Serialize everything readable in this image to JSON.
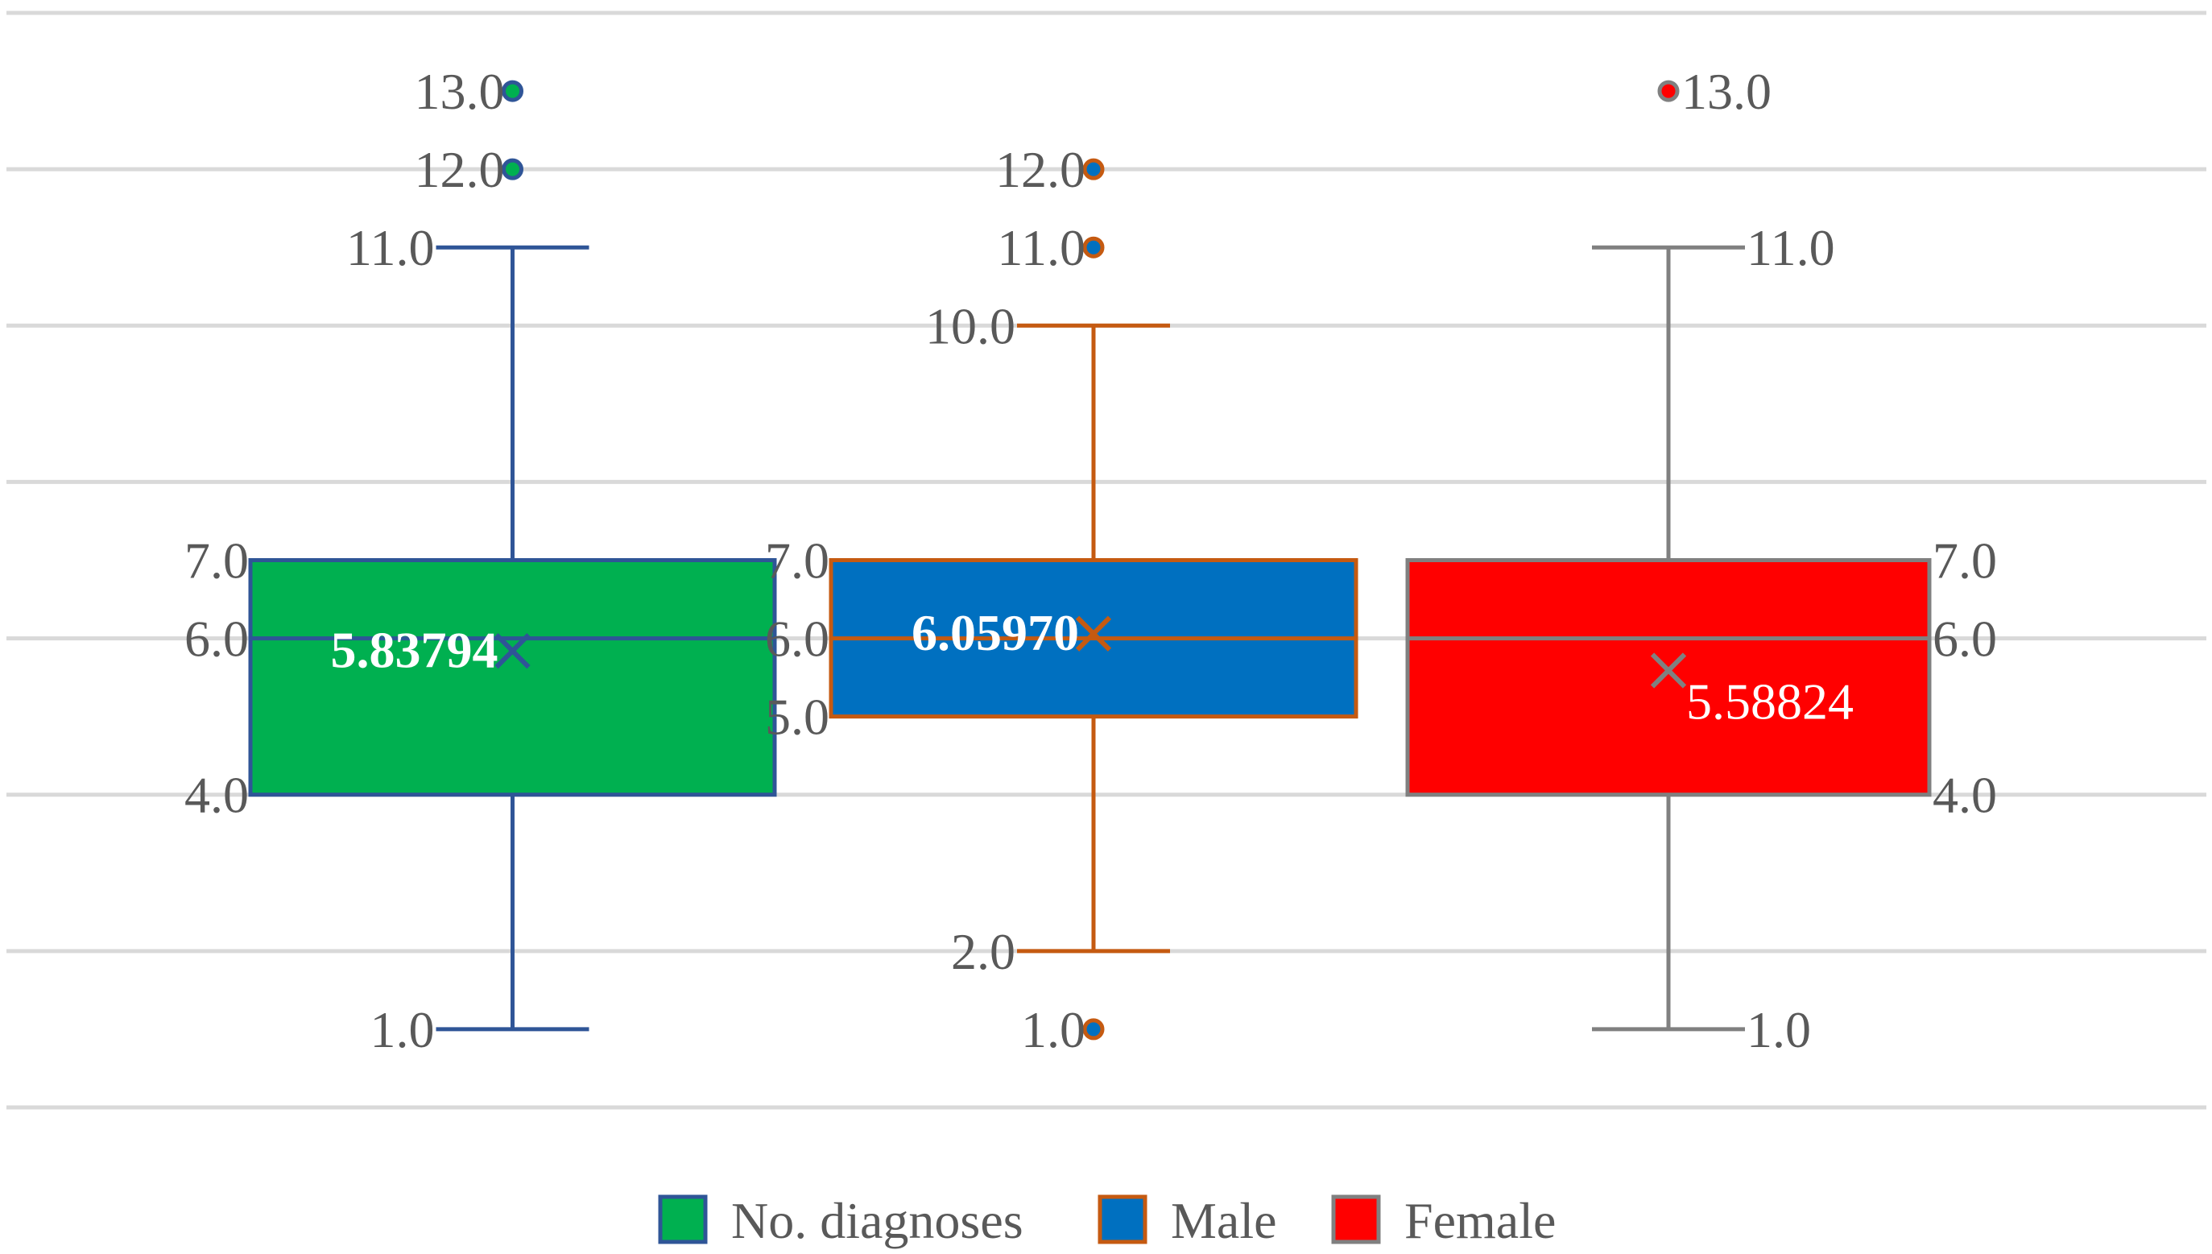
{
  "chart_data": {
    "type": "box",
    "title": "",
    "xlabel": "",
    "ylabel": "",
    "ylim": [
      0,
      14
    ],
    "grid": true,
    "legend_position": "bottom",
    "series": [
      {
        "name": "No. diagnoses",
        "fill": "#00B050",
        "stroke": "#2F5597",
        "min": 1.0,
        "q1": 4.0,
        "median": 6.0,
        "q3": 7.0,
        "max": 11.0,
        "mean": 5.83794,
        "outliers": [
          12.0,
          13.0
        ],
        "labels": {
          "min": "1.0",
          "q1": "4.0",
          "median": "6.0",
          "q3": "7.0",
          "max": "11.0",
          "mean": "5.83794",
          "outliers": [
            "12.0",
            "13.0"
          ]
        }
      },
      {
        "name": "Male",
        "fill": "#0070C0",
        "stroke": "#C55A11",
        "min": 2.0,
        "q1": 5.0,
        "median": 6.0,
        "q3": 7.0,
        "max": 10.0,
        "mean": 6.0597,
        "outliers": [
          1.0,
          11.0,
          12.0
        ],
        "labels": {
          "min": "2.0",
          "q1": "5.0",
          "median": "6.0",
          "q3": "7.0",
          "max": "10.0",
          "mean": "6.05970",
          "outliers": [
            "1.0",
            "11.0",
            "12.0"
          ]
        }
      },
      {
        "name": "Female",
        "fill": "#FF0000",
        "stroke": "#808080",
        "min": 1.0,
        "q1": 4.0,
        "median": 6.0,
        "q3": 7.0,
        "max": 11.0,
        "mean": 5.58824,
        "outliers": [
          13.0
        ],
        "labels": {
          "min": "1.0",
          "q1": "4.0",
          "median": "6.0",
          "q3": "7.0",
          "max": "11.0",
          "mean": "5.58824",
          "outliers": [
            "13.0"
          ]
        }
      }
    ]
  }
}
